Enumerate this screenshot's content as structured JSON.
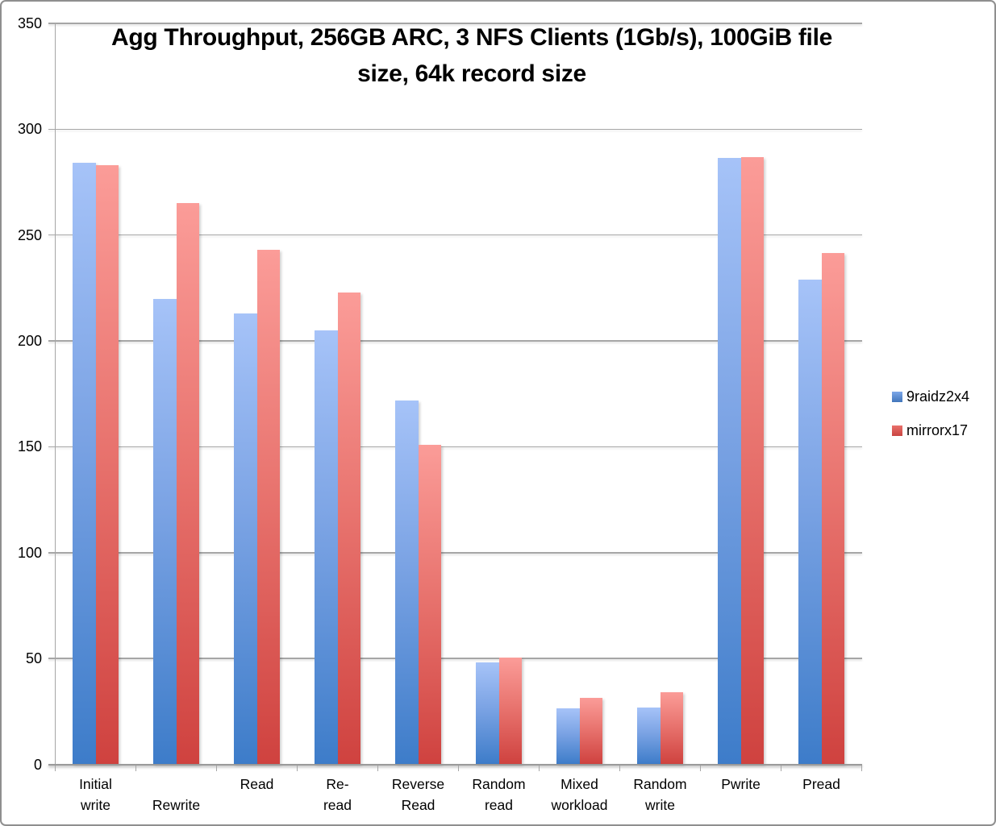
{
  "chart_data": {
    "type": "bar",
    "title": "Agg Throughput, 256GB ARC, 3 NFS Clients (1Gb/s), 100GiB file size, 64k record size",
    "title_lines": [
      "Agg Throughput, 256GB ARC, 3 NFS Clients (1Gb/s), 100GiB file",
      "size, 64k record size"
    ],
    "categories": [
      "Initial write",
      "Rewrite",
      "Read",
      "Re-read",
      "Reverse Read",
      "Random read",
      "Mixed workload",
      "Random write",
      "Pwrite",
      "Pread"
    ],
    "category_label_lines": [
      {
        "line1": "Initial",
        "line2": "write"
      },
      {
        "line1": "",
        "line2": "Rewrite"
      },
      {
        "line1": "Read",
        "line2": ""
      },
      {
        "line1": "Re-",
        "line2": "read"
      },
      {
        "line1": "Reverse",
        "line2": "Read"
      },
      {
        "line1": "Random",
        "line2": "read"
      },
      {
        "line1": "Mixed",
        "line2": "workload"
      },
      {
        "line1": "Random",
        "line2": "write"
      },
      {
        "line1": "Pwrite",
        "line2": ""
      },
      {
        "line1": "Pread",
        "line2": ""
      }
    ],
    "series": [
      {
        "name": "9raidz2x4",
        "values": [
          284,
          220,
          213,
          205,
          172,
          48,
          26.5,
          27,
          286.5,
          229
        ],
        "color_top": "#a6c3f8",
        "color_bottom": "#3d7cc9"
      },
      {
        "name": "mirrorx17",
        "values": [
          283,
          265,
          243,
          223,
          151,
          50.5,
          31.5,
          34,
          287,
          241.5
        ],
        "color_top": "#fb9c98",
        "color_bottom": "#cf423f"
      }
    ],
    "xlabel": "",
    "ylabel": "",
    "ylim": [
      0,
      350
    ],
    "yticks": [
      0,
      50,
      100,
      150,
      200,
      250,
      300,
      350
    ],
    "grid": true,
    "legend_position": "right",
    "gridline_color": "#a6a6a6"
  }
}
